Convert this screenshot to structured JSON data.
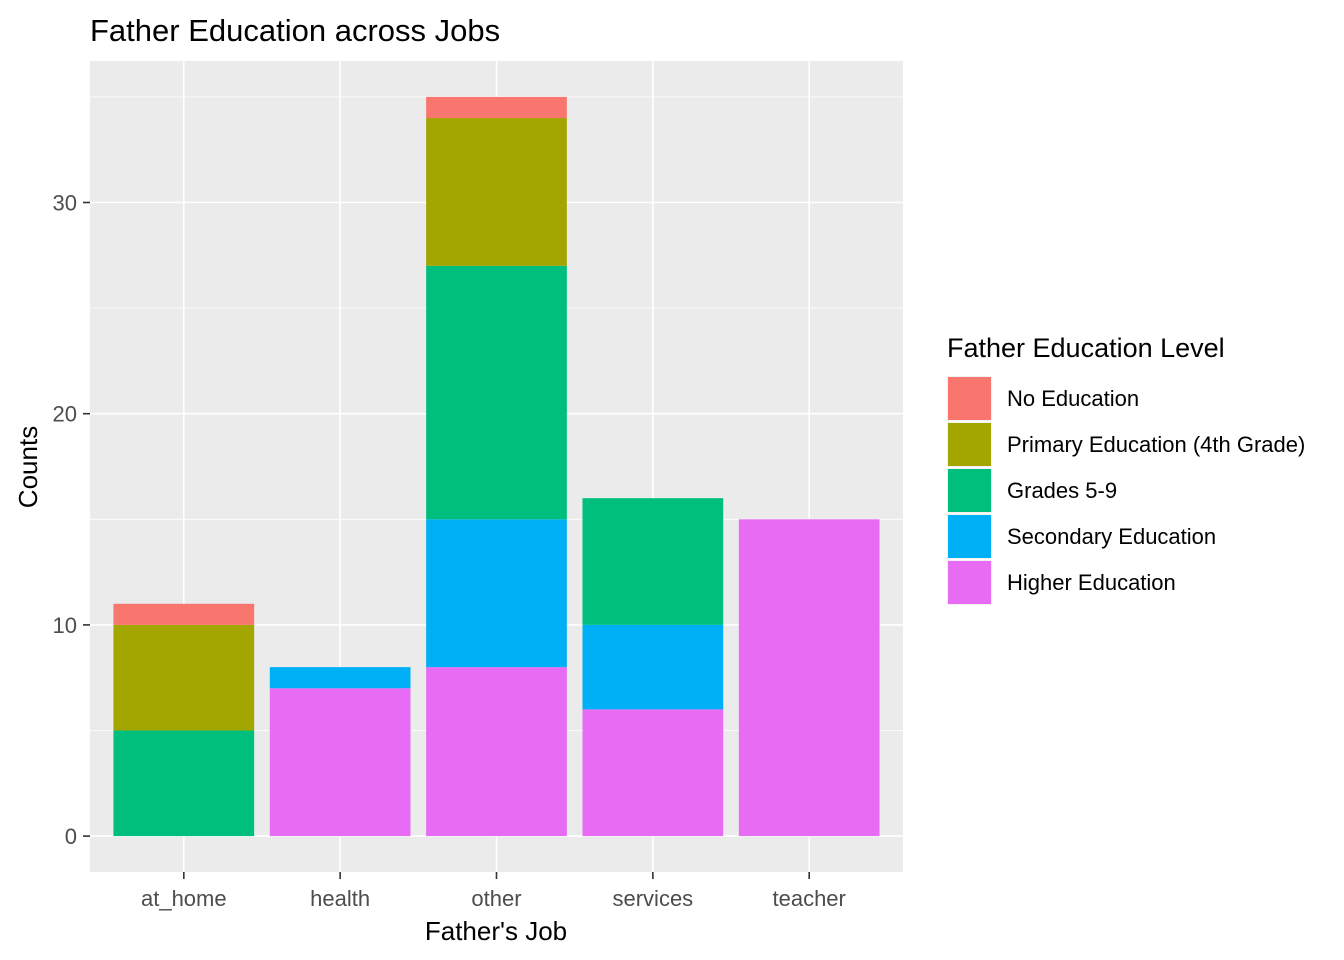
{
  "chart_data": {
    "type": "bar",
    "stacked": true,
    "title": "Father Education across Jobs",
    "xlabel": "Father's Job",
    "ylabel": "Counts",
    "categories": [
      "at_home",
      "health",
      "other",
      "services",
      "teacher"
    ],
    "ylim": [
      -1.7,
      36.7
    ],
    "yticks": [
      0,
      10,
      20,
      30
    ],
    "yticks_minor": [
      5,
      15,
      25,
      35
    ],
    "grid": true,
    "panel_background": "#ebebeb",
    "legend": {
      "title": "Father Education Level",
      "position": "right"
    },
    "series": [
      {
        "name": "No Education",
        "color": "#F8766D",
        "values": [
          1,
          0,
          1,
          0,
          0
        ]
      },
      {
        "name": "Primary Education (4th Grade)",
        "color": "#A3A500",
        "values": [
          5,
          0,
          7,
          0,
          0
        ]
      },
      {
        "name": "Grades 5-9",
        "color": "#00BF7D",
        "values": [
          5,
          0,
          12,
          6,
          0
        ]
      },
      {
        "name": "Secondary Education",
        "color": "#00B0F6",
        "values": [
          0,
          1,
          7,
          4,
          0
        ]
      },
      {
        "name": "Higher Education",
        "color": "#E76BF3",
        "values": [
          0,
          7,
          8,
          6,
          15
        ]
      }
    ]
  }
}
